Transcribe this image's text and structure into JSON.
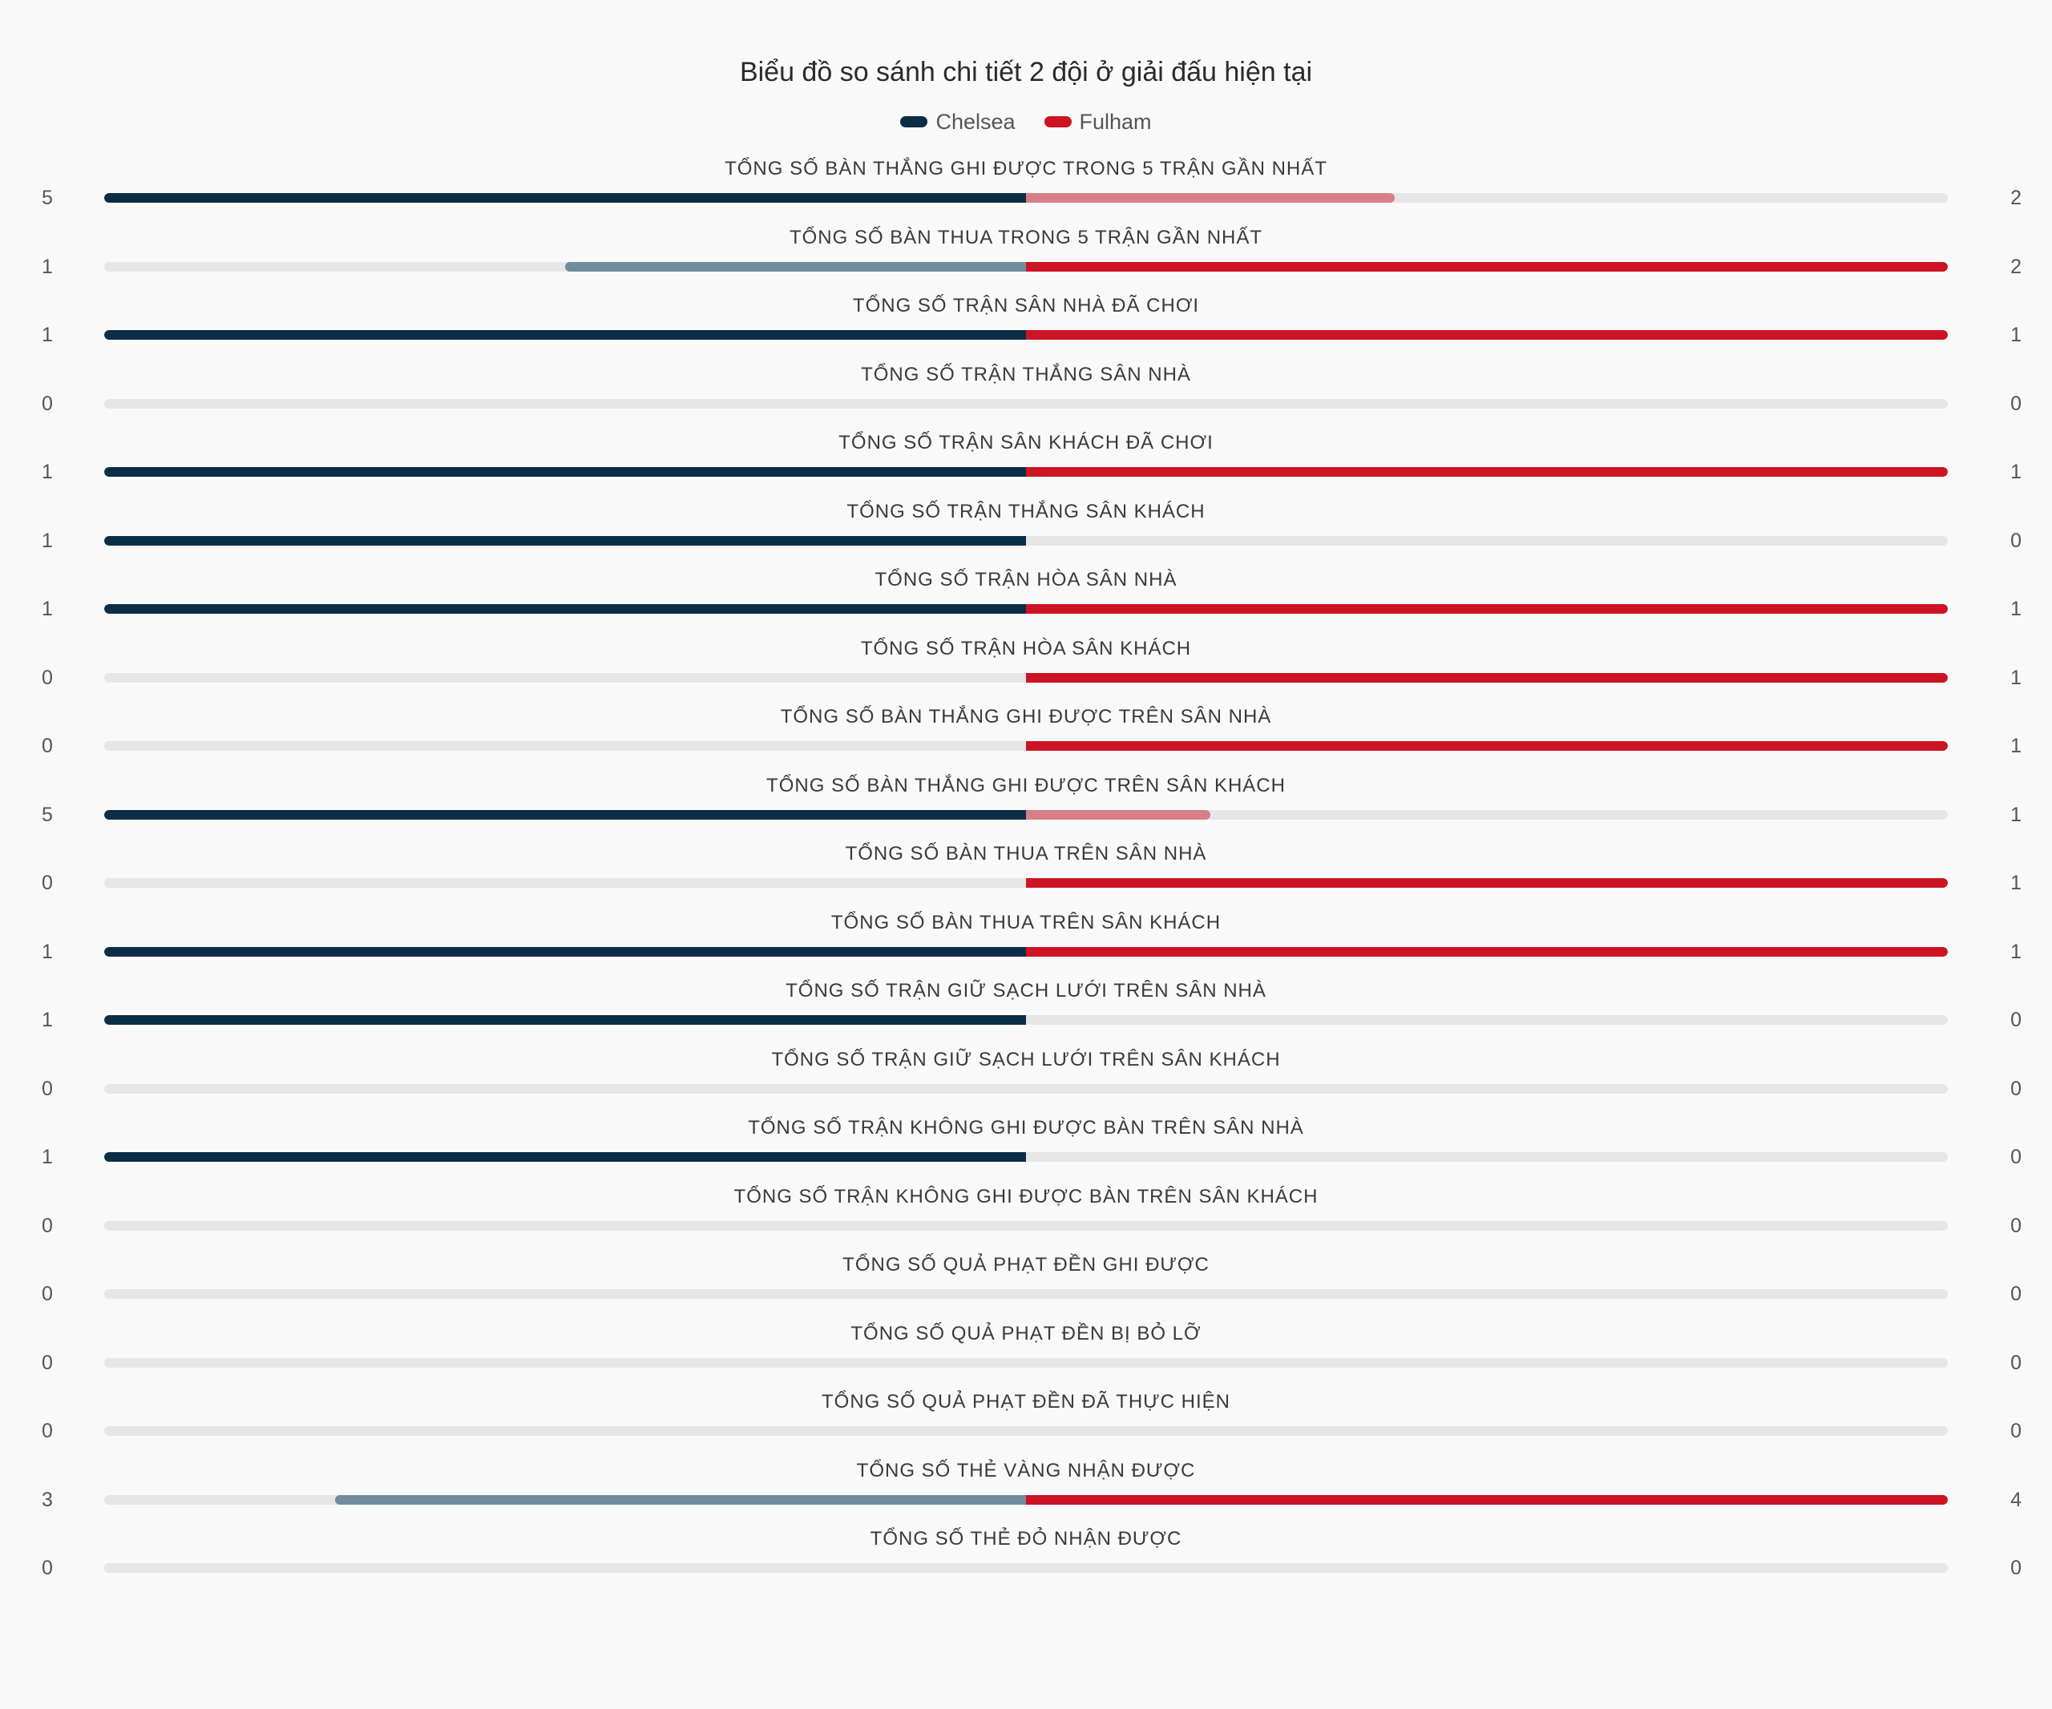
{
  "chart_data": {
    "type": "bar",
    "orientation": "diverging-horizontal",
    "title": "Biểu đồ so sánh chi tiết 2 đội ở giải đấu hiện tại",
    "legend_placement": "top-center",
    "series": [
      {
        "name": "Chelsea",
        "color": "#0b2e47",
        "light_color": "#718c9d"
      },
      {
        "name": "Fulham",
        "color": "#cc1424",
        "light_color": "#d67f86"
      }
    ],
    "rows": [
      {
        "label": "TỔNG SỐ BÀN THẮNG GHI ĐƯỢC TRONG 5 TRẬN GẦN NHẤT",
        "left": 5,
        "right": 2
      },
      {
        "label": "TỔNG SỐ BÀN THUA TRONG 5 TRẬN GẦN NHẤT",
        "left": 1,
        "right": 2
      },
      {
        "label": "TỔNG SỐ TRẬN SÂN NHÀ ĐÃ CHƠI",
        "left": 1,
        "right": 1
      },
      {
        "label": "TỔNG SỐ TRẬN THẮNG SÂN NHÀ",
        "left": 0,
        "right": 0
      },
      {
        "label": "TỔNG SỐ TRẬN SÂN KHÁCH ĐÃ CHƠI",
        "left": 1,
        "right": 1
      },
      {
        "label": "TỔNG SỐ TRẬN THẮNG SÂN KHÁCH",
        "left": 1,
        "right": 0
      },
      {
        "label": "TỔNG SỐ TRẬN HÒA SÂN NHÀ",
        "left": 1,
        "right": 1
      },
      {
        "label": "TỔNG SỐ TRẬN HÒA SÂN KHÁCH",
        "left": 0,
        "right": 1
      },
      {
        "label": "TỔNG SỐ BÀN THẮNG GHI ĐƯỢC TRÊN SÂN NHÀ",
        "left": 0,
        "right": 1
      },
      {
        "label": "TỔNG SỐ BÀN THẮNG GHI ĐƯỢC TRÊN SÂN KHÁCH",
        "left": 5,
        "right": 1
      },
      {
        "label": "TỔNG SỐ BÀN THUA TRÊN SÂN NHÀ",
        "left": 0,
        "right": 1
      },
      {
        "label": "TỔNG SỐ BÀN THUA TRÊN SÂN KHÁCH",
        "left": 1,
        "right": 1
      },
      {
        "label": "TỔNG SỐ TRẬN GIỮ SẠCH LƯỚI TRÊN SÂN NHÀ",
        "left": 1,
        "right": 0
      },
      {
        "label": "TỔNG SỐ TRẬN GIỮ SẠCH LƯỚI TRÊN SÂN KHÁCH",
        "left": 0,
        "right": 0
      },
      {
        "label": "TỔNG SỐ TRẬN KHÔNG GHI ĐƯỢC BÀN TRÊN SÂN NHÀ",
        "left": 1,
        "right": 0
      },
      {
        "label": "TỔNG SỐ TRẬN KHÔNG GHI ĐƯỢC BÀN TRÊN SÂN KHÁCH",
        "left": 0,
        "right": 0
      },
      {
        "label": "TỔNG SỐ QUẢ PHẠT ĐỀN GHI ĐƯỢC",
        "left": 0,
        "right": 0
      },
      {
        "label": "TỔNG SỐ QUẢ PHẠT ĐỀN BỊ BỎ LỠ",
        "left": 0,
        "right": 0
      },
      {
        "label": "TỔNG SỐ QUẢ PHẠT ĐỀN ĐÃ THỰC HIỆN",
        "left": 0,
        "right": 0
      },
      {
        "label": "TỔNG SỐ THẺ VÀNG NHẬN ĐƯỢC",
        "left": 3,
        "right": 4
      },
      {
        "label": "TỔNG SỐ THẺ ĐỎ NHẬN ĐƯỢC",
        "left": 0,
        "right": 0
      }
    ]
  }
}
